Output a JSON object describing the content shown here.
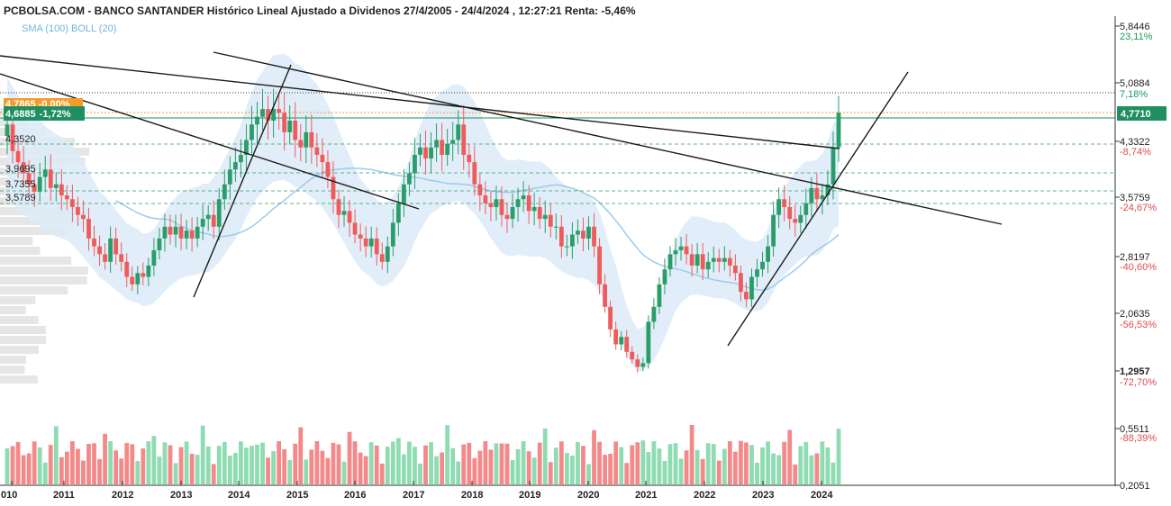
{
  "header": {
    "title": "PCBOLSA.COM - BANCO SANTANDER Histórico Lineal Ajustado a Dividenos 27/4/2005 - 24/4/2024 , 12:27:21 Renta: -5,46%",
    "legend": "SMA (100) BOLL (20)"
  },
  "chart_data": {
    "type": "candlestick",
    "title": "PCBOLSA.COM - BANCO SANTANDER Histórico Lineal Ajustado a Dividenos 27/4/2005 - 24/4/2024 , 12:27:21 Renta: -5,46%",
    "x_tick_labels": [
      "010",
      "2011",
      "2012",
      "2013",
      "2014",
      "2015",
      "2016",
      "2017",
      "2018",
      "2019",
      "2020",
      "2021",
      "2022",
      "2023",
      "2024"
    ],
    "y_tick_labels": [
      "5,8446",
      "5,0884",
      "4,3322",
      "3,5759",
      "2,8197",
      "2,0635",
      "1,2957",
      "0,5511",
      "0,2051"
    ],
    "y_pct_labels": [
      {
        "value": "23,11%",
        "color": "#1a9a5c"
      },
      {
        "value": "7,18%",
        "color": "#1a9a5c"
      },
      {
        "value": "-8,74%",
        "color": "#e04b4b"
      },
      {
        "value": "-24,67%",
        "color": "#e04b4b"
      },
      {
        "value": "-40,60%",
        "color": "#e04b4b"
      },
      {
        "value": "-56,53%",
        "color": "#e04b4b"
      },
      {
        "value": "-72,70%",
        "color": "#e04b4b"
      },
      {
        "value": "-88,39%",
        "color": "#e04b4b"
      }
    ],
    "current_price_tag": "4,7710",
    "left_tag_price": "4,6885",
    "left_tag_change": "-1,72%",
    "left_tag_hidden": "4,7865 -0,00%",
    "left_levels": [
      "4,3520",
      "3,9695",
      "3,7355",
      "3,5789"
    ],
    "indicators": [
      "SMA (100)",
      "BOLL (20)"
    ],
    "colors": {
      "up": "#2a9d6a",
      "down": "#ef5b5b",
      "band": "#dcebf8",
      "sma": "#9ccbe8",
      "vol_up": "#8fdcb2",
      "vol_down": "#f4898a"
    },
    "price_range": [
      0.2051,
      5.8446
    ],
    "monthly_closes": [
      4.55,
      4.2,
      4.05,
      3.9,
      3.75,
      3.65,
      3.85,
      3.95,
      3.7,
      3.75,
      3.6,
      3.55,
      3.45,
      3.35,
      3.3,
      3.05,
      2.95,
      2.85,
      2.75,
      3.05,
      2.85,
      2.75,
      2.55,
      2.45,
      2.6,
      2.55,
      2.7,
      2.9,
      3.05,
      3.2,
      3.1,
      3.2,
      3.05,
      3.15,
      3.05,
      3.2,
      3.3,
      3.35,
      3.2,
      3.55,
      3.75,
      3.95,
      4.05,
      4.15,
      4.35,
      4.55,
      4.65,
      4.75,
      4.6,
      4.75,
      4.7,
      4.45,
      4.6,
      4.35,
      4.25,
      4.45,
      4.25,
      4.15,
      4.05,
      3.85,
      3.55,
      3.35,
      3.4,
      3.25,
      3.1,
      3.05,
      2.95,
      3.05,
      2.85,
      2.75,
      2.95,
      3.25,
      3.5,
      3.75,
      3.9,
      4.15,
      4.25,
      4.1,
      4.25,
      4.35,
      4.15,
      4.3,
      4.35,
      4.55,
      4.15,
      4.05,
      3.75,
      3.6,
      3.5,
      3.45,
      3.55,
      3.35,
      3.3,
      3.45,
      3.55,
      3.6,
      3.4,
      3.45,
      3.3,
      3.35,
      3.2,
      3.2,
      2.95,
      2.95,
      3.1,
      3.15,
      3.05,
      3.2,
      2.95,
      2.45,
      2.15,
      1.85,
      1.65,
      1.75,
      1.55,
      1.45,
      1.35,
      1.4,
      1.95,
      2.15,
      2.45,
      2.65,
      2.85,
      2.9,
      2.95,
      2.85,
      2.7,
      2.85,
      2.65,
      2.75,
      2.8,
      2.75,
      2.8,
      2.7,
      2.6,
      2.35,
      2.25,
      2.55,
      2.65,
      2.75,
      2.95,
      3.35,
      3.55,
      3.45,
      3.3,
      3.25,
      3.35,
      3.5,
      3.7,
      3.55,
      3.6,
      3.75,
      4.25,
      4.7
    ]
  }
}
